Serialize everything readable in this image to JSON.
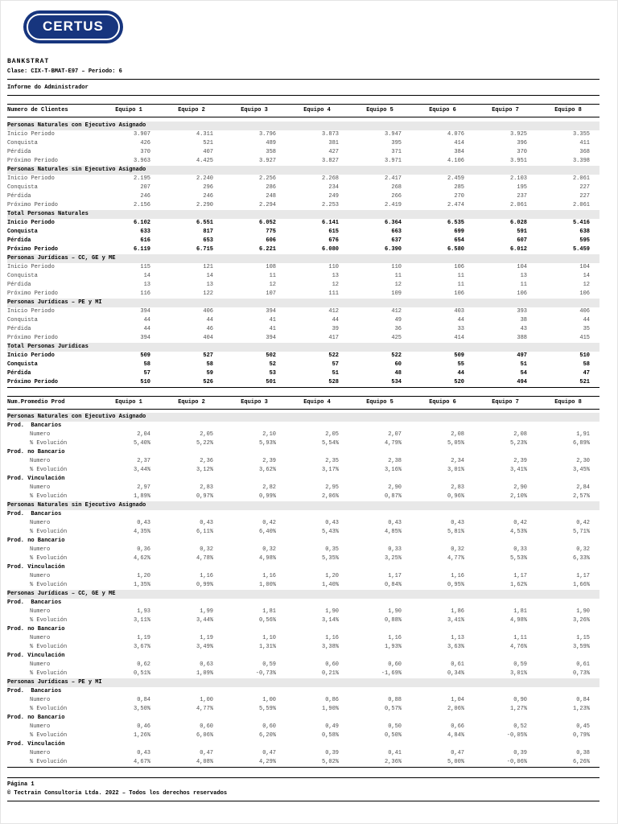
{
  "colors": {
    "brand_navy": "#17357e"
  },
  "logo": {
    "text": "CERTUS"
  },
  "header": {
    "title": "BANKSTRAT",
    "subtitle": "Clase: CIX-T-BMAT-E97 – Periodo: 6",
    "report_name": "Informe do Administrador"
  },
  "columns": [
    "Equipo 1",
    "Equipo 2",
    "Equipo 3",
    "Equipo 4",
    "Equipo 5",
    "Equipo 6",
    "Equipo 7",
    "Equipo 8"
  ],
  "tables": [
    {
      "id": "clientes",
      "title": "Numero de Clientes",
      "sections": [
        {
          "label": "Personas Naturales con Ejecutivo Asignado",
          "bold": false,
          "rows": [
            {
              "label": "Inicio Periodo",
              "values": [
                "3.907",
                "4.311",
                "3.796",
                "3.873",
                "3.947",
                "4.076",
                "3.925",
                "3.355"
              ]
            },
            {
              "label": "Conquista",
              "values": [
                "426",
                "521",
                "489",
                "381",
                "395",
                "414",
                "396",
                "411"
              ]
            },
            {
              "label": "Pérdida",
              "values": [
                "370",
                "407",
                "358",
                "427",
                "371",
                "384",
                "370",
                "368"
              ]
            },
            {
              "label": "Próximo Periodo",
              "values": [
                "3.963",
                "4.425",
                "3.927",
                "3.827",
                "3.971",
                "4.106",
                "3.951",
                "3.398"
              ]
            }
          ]
        },
        {
          "label": "Personas Naturales sin Ejecutivo Asignado",
          "bold": false,
          "rows": [
            {
              "label": "Inicio Periodo",
              "values": [
                "2.195",
                "2.240",
                "2.256",
                "2.268",
                "2.417",
                "2.459",
                "2.103",
                "2.061"
              ]
            },
            {
              "label": "Conquista",
              "values": [
                "207",
                "296",
                "286",
                "234",
                "268",
                "285",
                "195",
                "227"
              ]
            },
            {
              "label": "Pérdida",
              "values": [
                "246",
                "246",
                "248",
                "249",
                "266",
                "270",
                "237",
                "227"
              ]
            },
            {
              "label": "Próximo Periodo",
              "values": [
                "2.156",
                "2.290",
                "2.294",
                "2.253",
                "2.419",
                "2.474",
                "2.061",
                "2.061"
              ]
            }
          ]
        },
        {
          "label": "Total Personas Naturales",
          "bold": true,
          "rows": [
            {
              "label": "Inicio Periodo",
              "values": [
                "6.102",
                "6.551",
                "6.052",
                "6.141",
                "6.364",
                "6.535",
                "6.028",
                "5.416"
              ]
            },
            {
              "label": "Conquista",
              "values": [
                "633",
                "817",
                "775",
                "615",
                "663",
                "699",
                "591",
                "638"
              ]
            },
            {
              "label": "Pérdida",
              "values": [
                "616",
                "653",
                "606",
                "676",
                "637",
                "654",
                "607",
                "595"
              ]
            },
            {
              "label": "Próximo Periodo",
              "values": [
                "6.119",
                "6.715",
                "6.221",
                "6.080",
                "6.390",
                "6.580",
                "6.012",
                "5.459"
              ]
            }
          ]
        },
        {
          "label": "Personas Jurídicas – CC, GE y ME",
          "bold": false,
          "rows": [
            {
              "label": "Inicio Periodo",
              "values": [
                "115",
                "121",
                "108",
                "110",
                "110",
                "106",
                "104",
                "104"
              ]
            },
            {
              "label": "Conquista",
              "values": [
                "14",
                "14",
                "11",
                "13",
                "11",
                "11",
                "13",
                "14"
              ]
            },
            {
              "label": "Pérdida",
              "values": [
                "13",
                "13",
                "12",
                "12",
                "12",
                "11",
                "11",
                "12"
              ]
            },
            {
              "label": "Próximo Periodo",
              "values": [
                "116",
                "122",
                "107",
                "111",
                "109",
                "106",
                "106",
                "106"
              ]
            }
          ]
        },
        {
          "label": "Personas Jurídicas – PE y MI",
          "bold": false,
          "rows": [
            {
              "label": "Inicio Periodo",
              "values": [
                "394",
                "406",
                "394",
                "412",
                "412",
                "403",
                "393",
                "406"
              ]
            },
            {
              "label": "Conquista",
              "values": [
                "44",
                "44",
                "41",
                "44",
                "49",
                "44",
                "38",
                "44"
              ]
            },
            {
              "label": "Pérdida",
              "values": [
                "44",
                "46",
                "41",
                "39",
                "36",
                "33",
                "43",
                "35"
              ]
            },
            {
              "label": "Próximo Periodo",
              "values": [
                "394",
                "404",
                "394",
                "417",
                "425",
                "414",
                "388",
                "415"
              ]
            }
          ]
        },
        {
          "label": "Total Personas Juridicas",
          "bold": true,
          "rows": [
            {
              "label": "Inicio Periodo",
              "values": [
                "509",
                "527",
                "502",
                "522",
                "522",
                "509",
                "497",
                "510"
              ]
            },
            {
              "label": "Conquista",
              "values": [
                "58",
                "58",
                "52",
                "57",
                "60",
                "55",
                "51",
                "58"
              ]
            },
            {
              "label": "Pérdida",
              "values": [
                "57",
                "59",
                "53",
                "51",
                "48",
                "44",
                "54",
                "47"
              ]
            },
            {
              "label": "Próximo Periodo",
              "values": [
                "510",
                "526",
                "501",
                "528",
                "534",
                "520",
                "494",
                "521"
              ]
            }
          ]
        }
      ]
    },
    {
      "id": "promedio",
      "title": "Num.Promedio Prod",
      "sections": [
        {
          "label": "Personas Naturales con Ejecutivo Asignado",
          "groups": [
            {
              "label": "Prod.  Bancarios",
              "rows": [
                {
                  "label": "Numero",
                  "values": [
                    "2,04",
                    "2,05",
                    "2,10",
                    "2,05",
                    "2,07",
                    "2,08",
                    "2,08",
                    "1,91"
                  ]
                },
                {
                  "label": "% Evolución",
                  "values": [
                    "5,40%",
                    "5,22%",
                    "5,93%",
                    "5,54%",
                    "4,79%",
                    "5,05%",
                    "5,23%",
                    "6,89%"
                  ]
                }
              ]
            },
            {
              "label": "Prod. no Bancario",
              "rows": [
                {
                  "label": "Numero",
                  "values": [
                    "2,37",
                    "2,36",
                    "2,39",
                    "2,35",
                    "2,38",
                    "2,34",
                    "2,39",
                    "2,30"
                  ]
                },
                {
                  "label": "% Evolución",
                  "values": [
                    "3,44%",
                    "3,12%",
                    "3,62%",
                    "3,17%",
                    "3,16%",
                    "3,01%",
                    "3,41%",
                    "3,45%"
                  ]
                }
              ]
            },
            {
              "label": "Prod. Vinculación",
              "rows": [
                {
                  "label": "Numero",
                  "values": [
                    "2,97",
                    "2,83",
                    "2,82",
                    "2,95",
                    "2,90",
                    "2,83",
                    "2,90",
                    "2,84"
                  ]
                },
                {
                  "label": "% Evolución",
                  "values": [
                    "1,89%",
                    "0,97%",
                    "0,99%",
                    "2,06%",
                    "0,87%",
                    "0,96%",
                    "2,10%",
                    "2,57%"
                  ]
                }
              ]
            }
          ]
        },
        {
          "label": "Personas Naturales sin Ejecutivo Asignado",
          "groups": [
            {
              "label": "Prod.  Bancarios",
              "rows": [
                {
                  "label": "Numero",
                  "values": [
                    "0,43",
                    "0,43",
                    "0,42",
                    "0,43",
                    "0,43",
                    "0,43",
                    "0,42",
                    "0,42"
                  ]
                },
                {
                  "label": "% Evolución",
                  "values": [
                    "4,35%",
                    "6,11%",
                    "6,40%",
                    "5,43%",
                    "4,85%",
                    "5,81%",
                    "4,53%",
                    "5,71%"
                  ]
                }
              ]
            },
            {
              "label": "Prod. no Bancario",
              "rows": [
                {
                  "label": "Numero",
                  "values": [
                    "0,36",
                    "0,32",
                    "0,32",
                    "0,35",
                    "0,33",
                    "0,32",
                    "0,33",
                    "0,32"
                  ]
                },
                {
                  "label": "% Evolución",
                  "values": [
                    "4,62%",
                    "4,78%",
                    "4,98%",
                    "5,35%",
                    "3,25%",
                    "4,77%",
                    "5,53%",
                    "6,33%"
                  ]
                }
              ]
            },
            {
              "label": "Prod. Vinculación",
              "rows": [
                {
                  "label": "Numero",
                  "values": [
                    "1,20",
                    "1,16",
                    "1,16",
                    "1,20",
                    "1,17",
                    "1,16",
                    "1,17",
                    "1,17"
                  ]
                },
                {
                  "label": "% Evolución",
                  "values": [
                    "1,35%",
                    "0,99%",
                    "1,00%",
                    "1,40%",
                    "0,84%",
                    "0,95%",
                    "1,62%",
                    "1,66%"
                  ]
                }
              ]
            }
          ]
        },
        {
          "label": "Personas Jurídicas – CC, GE y ME",
          "groups": [
            {
              "label": "Prod.  Bancarios",
              "rows": [
                {
                  "label": "Numero",
                  "values": [
                    "1,93",
                    "1,99",
                    "1,81",
                    "1,90",
                    "1,90",
                    "1,86",
                    "1,81",
                    "1,90"
                  ]
                },
                {
                  "label": "% Evolución",
                  "values": [
                    "3,11%",
                    "3,44%",
                    "0,56%",
                    "3,14%",
                    "0,88%",
                    "3,41%",
                    "4,98%",
                    "3,26%"
                  ]
                }
              ]
            },
            {
              "label": "Prod. no Bancario",
              "rows": [
                {
                  "label": "Numero",
                  "values": [
                    "1,19",
                    "1,19",
                    "1,10",
                    "1,16",
                    "1,16",
                    "1,13",
                    "1,11",
                    "1,15"
                  ]
                },
                {
                  "label": "% Evolución",
                  "values": [
                    "3,67%",
                    "3,49%",
                    "1,31%",
                    "3,38%",
                    "1,93%",
                    "3,63%",
                    "4,76%",
                    "3,59%"
                  ]
                }
              ]
            },
            {
              "label": "Prod. Vinculación",
              "rows": [
                {
                  "label": "Numero",
                  "values": [
                    "0,62",
                    "0,63",
                    "0,59",
                    "0,60",
                    "0,60",
                    "0,61",
                    "0,59",
                    "0,61"
                  ]
                },
                {
                  "label": "% Evolución",
                  "values": [
                    "0,51%",
                    "1,09%",
                    "-0,73%",
                    "0,21%",
                    "-1,69%",
                    "0,34%",
                    "3,01%",
                    "0,73%"
                  ]
                }
              ]
            }
          ]
        },
        {
          "label": "Personas Jurídicas – PE y MI",
          "groups": [
            {
              "label": "Prod.  Bancarios",
              "rows": [
                {
                  "label": "Numero",
                  "values": [
                    "0,84",
                    "1,00",
                    "1,00",
                    "0,86",
                    "0,88",
                    "1,04",
                    "0,90",
                    "0,84"
                  ]
                },
                {
                  "label": "% Evolución",
                  "values": [
                    "3,50%",
                    "4,77%",
                    "5,59%",
                    "1,90%",
                    "0,57%",
                    "2,06%",
                    "1,27%",
                    "1,23%"
                  ]
                }
              ]
            },
            {
              "label": "Prod. no Bancario",
              "rows": [
                {
                  "label": "Numero",
                  "values": [
                    "0,46",
                    "0,60",
                    "0,60",
                    "0,49",
                    "0,50",
                    "0,66",
                    "0,52",
                    "0,45"
                  ]
                },
                {
                  "label": "% Evolución",
                  "values": [
                    "1,26%",
                    "6,06%",
                    "6,20%",
                    "0,58%",
                    "0,50%",
                    "4,84%",
                    "-0,05%",
                    "0,79%"
                  ]
                }
              ]
            },
            {
              "label": "Prod. Vinculación",
              "rows": [
                {
                  "label": "Numero",
                  "values": [
                    "0,43",
                    "0,47",
                    "0,47",
                    "0,39",
                    "0,41",
                    "0,47",
                    "0,39",
                    "0,38"
                  ]
                },
                {
                  "label": "% Evolución",
                  "values": [
                    "4,67%",
                    "4,08%",
                    "4,29%",
                    "5,02%",
                    "2,36%",
                    "5,00%",
                    "-0,06%",
                    "6,26%"
                  ]
                }
              ]
            }
          ]
        }
      ]
    }
  ],
  "footer": {
    "page": "Página 1",
    "copyright": "© Tectrain Consultoria Ltda. 2022 – Todos los derechos reservados"
  }
}
